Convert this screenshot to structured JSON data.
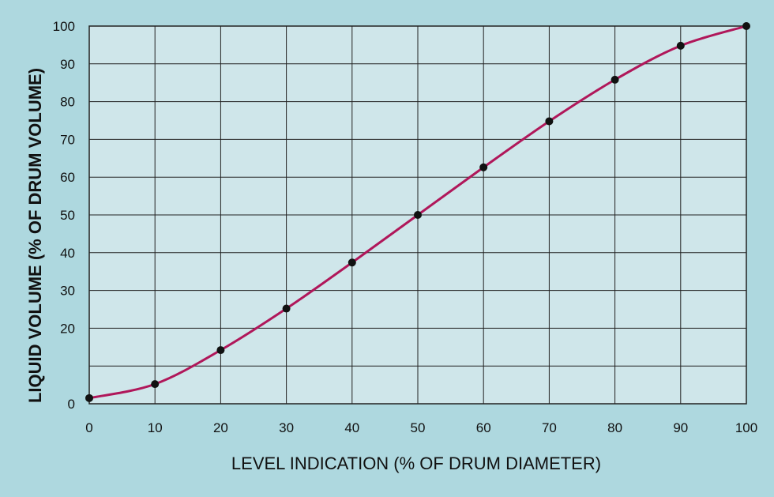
{
  "chart_data": {
    "type": "line",
    "title": "",
    "xlabel": "LEVEL INDICATION (% OF DRUM DIAMETER)",
    "ylabel": "LIQUID VOLUME (% OF DRUM VOLUME)",
    "xlim": [
      0,
      100
    ],
    "ylim": [
      0,
      100
    ],
    "xticks": [
      "0",
      "10",
      "20",
      "30",
      "40",
      "50",
      "60",
      "70",
      "80",
      "90",
      "100"
    ],
    "yticks": [
      "0",
      "20",
      "30",
      "40",
      "50",
      "60",
      "70",
      "80",
      "90",
      "100"
    ],
    "grid": true,
    "x": [
      0,
      10,
      20,
      30,
      40,
      50,
      60,
      70,
      80,
      90,
      100
    ],
    "values": [
      1.5,
      5.2,
      14.2,
      25.2,
      37.4,
      50.0,
      62.6,
      74.8,
      85.8,
      94.8,
      100.0
    ],
    "colors": {
      "background": "#aed8df",
      "plot_area": "#cfe6ea",
      "line": "#b0175a",
      "points": "#111111",
      "grid": "#222222"
    }
  }
}
